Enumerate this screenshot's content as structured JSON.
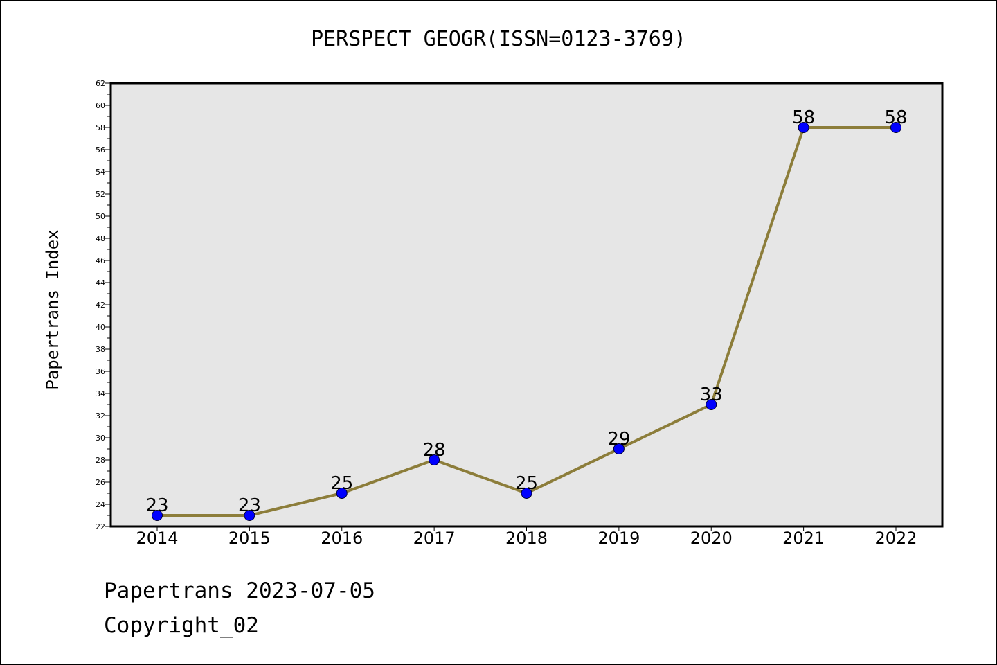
{
  "chart_data": {
    "type": "line",
    "title": "PERSPECT GEOGR(ISSN=0123-3769)",
    "xlabel": "",
    "ylabel": "Papertrans Index",
    "categories": [
      "2014",
      "2015",
      "2016",
      "2017",
      "2018",
      "2019",
      "2020",
      "2021",
      "2022"
    ],
    "values": [
      23,
      23,
      25,
      28,
      25,
      29,
      33,
      58,
      58
    ],
    "ylim": [
      22,
      62
    ],
    "yticks": [
      22,
      24,
      26,
      28,
      30,
      32,
      34,
      36,
      38,
      40,
      42,
      44,
      46,
      48,
      50,
      52,
      54,
      56,
      58,
      60,
      62
    ],
    "grid": false,
    "legend": "none",
    "colors": {
      "line": "#8c7d3a",
      "marker": "#0000ff",
      "plot_background": "#e6e6e6",
      "page_background": "#ffffff"
    }
  },
  "footer": {
    "line1": "Papertrans 2023-07-05",
    "line2": "Copyright_02"
  }
}
